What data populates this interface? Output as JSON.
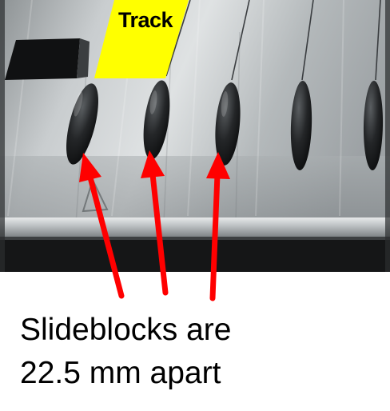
{
  "track_label": "Track",
  "caption": {
    "line1": "Slideblocks are",
    "line2": "22.5 mm apart"
  },
  "colors": {
    "track_tag": "#ffff00",
    "arrow": "#ff0000",
    "slideblock": "#1f1f1f",
    "metal": "#b9bdbf"
  }
}
